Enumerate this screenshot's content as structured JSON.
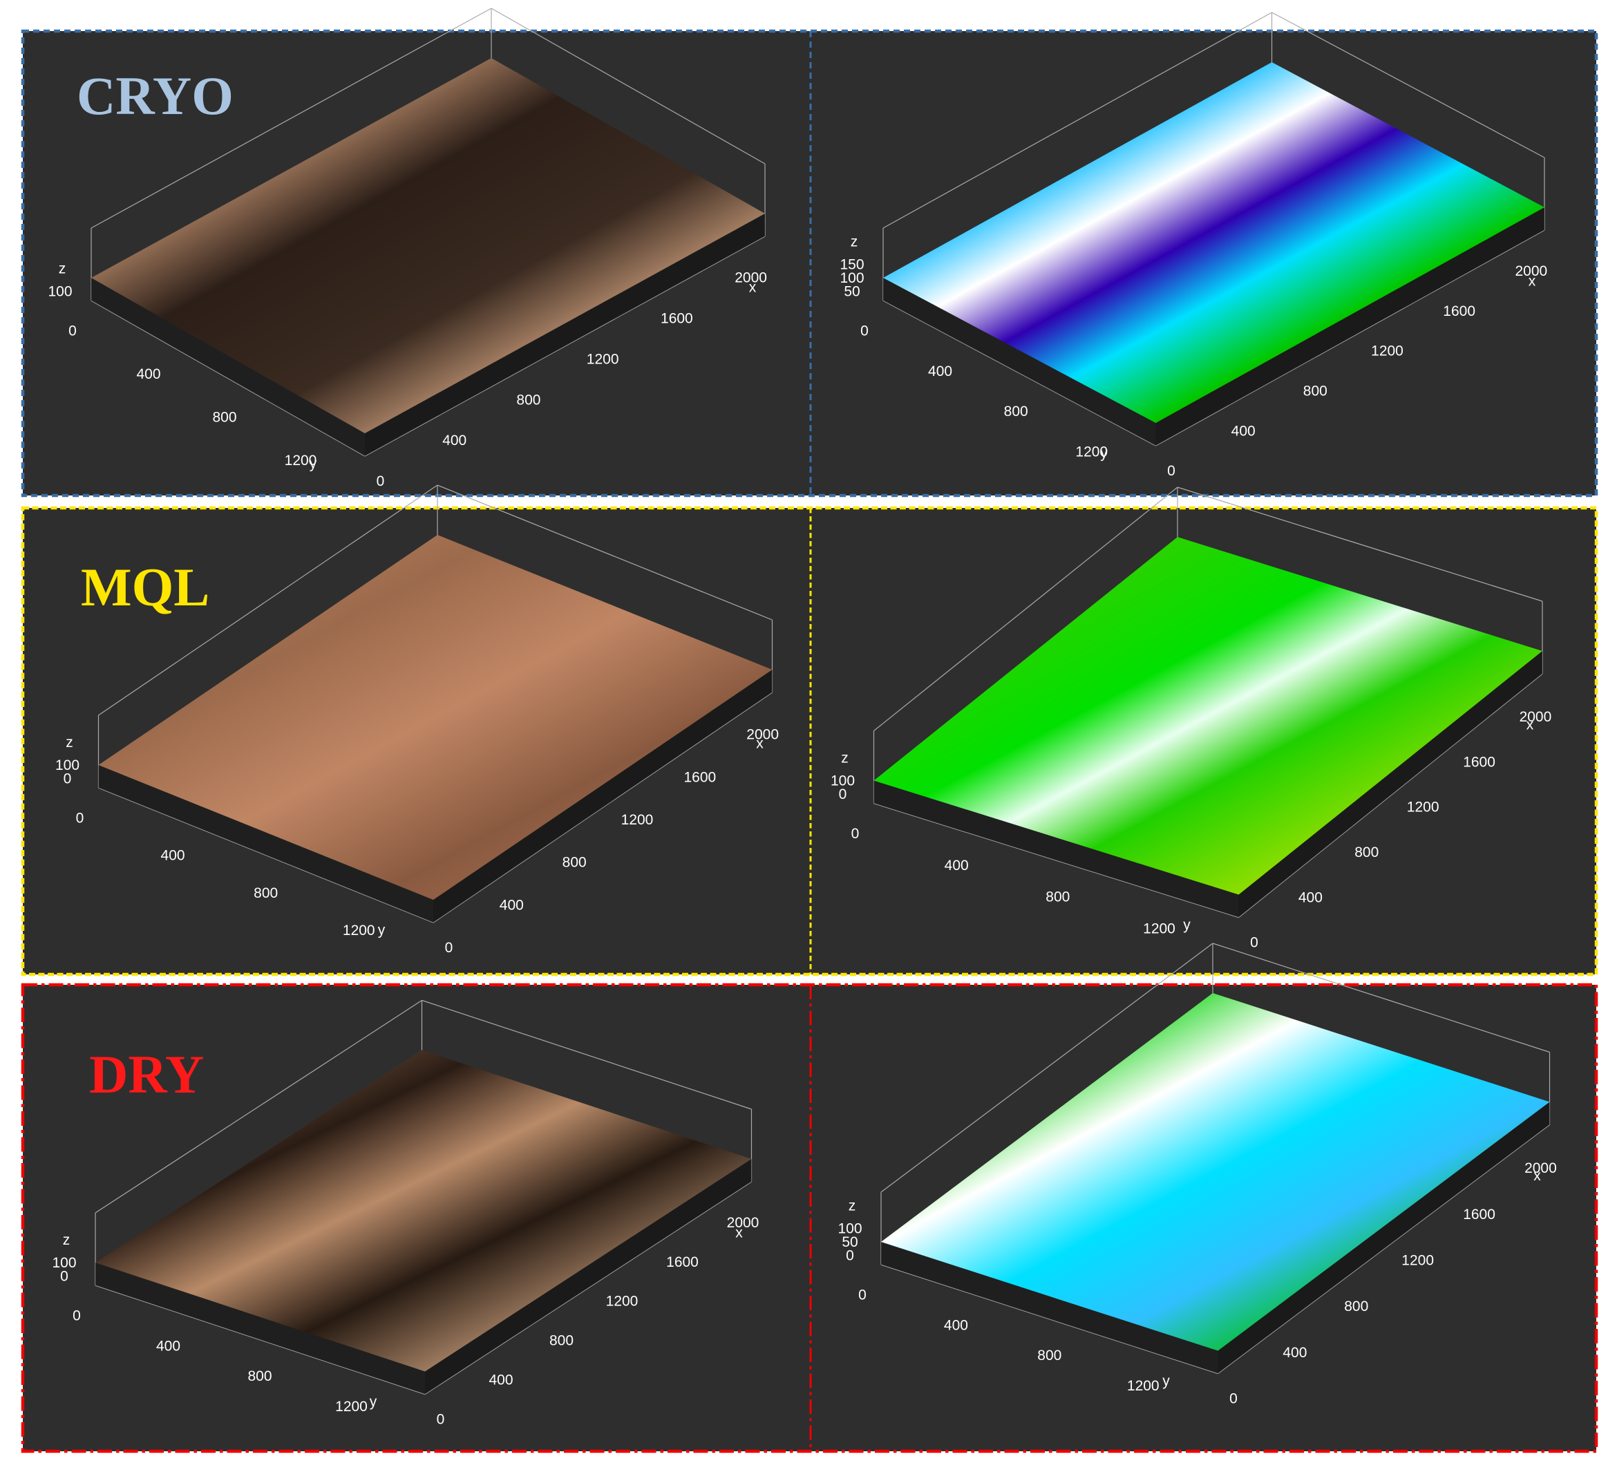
{
  "panels": [
    {
      "label": "CRYO",
      "plots": [
        {
          "z_label": "z",
          "y_label": "y",
          "x_label": "x",
          "zticks": [
            100
          ],
          "yticks": [
            0,
            400,
            800,
            1200
          ],
          "xticks": [
            0,
            400,
            800,
            1200,
            1600,
            2000
          ]
        },
        {
          "z_label": "z",
          "y_label": "y",
          "x_label": "x",
          "zticks": [
            150,
            100,
            50
          ],
          "yticks": [
            0,
            400,
            800,
            1200
          ],
          "xticks": [
            0,
            400,
            800,
            1200,
            1600,
            2000
          ]
        }
      ]
    },
    {
      "label": "MQL",
      "plots": [
        {
          "z_label": "z",
          "y_label": "y",
          "x_label": "x",
          "zticks": [
            100,
            0
          ],
          "yticks": [
            0,
            400,
            800,
            1200
          ],
          "xticks": [
            0,
            400,
            800,
            1200,
            1600,
            2000
          ]
        },
        {
          "z_label": "z",
          "y_label": "y",
          "x_label": "x",
          "zticks": [
            100,
            0
          ],
          "yticks": [
            0,
            400,
            800,
            1200
          ],
          "xticks": [
            0,
            400,
            800,
            1200,
            1600,
            2000
          ]
        }
      ]
    },
    {
      "label": "DRY",
      "plots": [
        {
          "z_label": "z",
          "y_label": "y",
          "x_label": "x",
          "zticks": [
            100,
            0
          ],
          "yticks": [
            0,
            400,
            800,
            1200
          ],
          "xticks": [
            0,
            400,
            800,
            1200,
            1600,
            2000
          ]
        },
        {
          "z_label": "z",
          "y_label": "y",
          "x_label": "x",
          "zticks": [
            100,
            50,
            0
          ],
          "yticks": [
            0,
            400,
            800,
            1200
          ],
          "xticks": [
            0,
            400,
            800,
            1200,
            1600,
            2000
          ]
        }
      ]
    }
  ]
}
